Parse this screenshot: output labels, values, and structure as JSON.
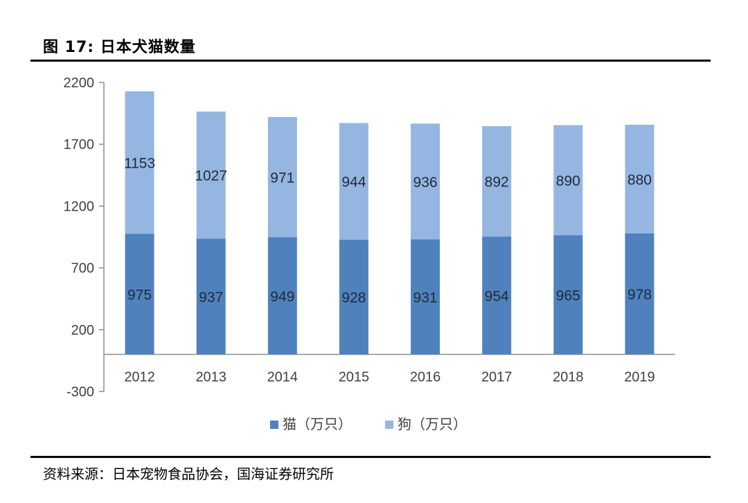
{
  "figure": {
    "title": "图 17:  日本犬猫数量",
    "source": "资料来源：日本宠物食品协会，国海证券研究所"
  },
  "chart_data": {
    "type": "bar",
    "stacked": true,
    "categories": [
      "2012",
      "2013",
      "2014",
      "2015",
      "2016",
      "2017",
      "2018",
      "2019"
    ],
    "series": [
      {
        "name": "猫（万只）",
        "values": [
          975,
          937,
          949,
          928,
          931,
          954,
          965,
          978
        ],
        "color": "#4f81bd"
      },
      {
        "name": "狗（万只）",
        "values": [
          1153,
          1027,
          971,
          944,
          936,
          892,
          890,
          880
        ],
        "color": "#95b6e0"
      }
    ],
    "yticks": [
      -300,
      200,
      700,
      1200,
      1700,
      2200
    ],
    "ylim": [
      -300,
      2200
    ],
    "grid": false,
    "legend": "bottom"
  }
}
